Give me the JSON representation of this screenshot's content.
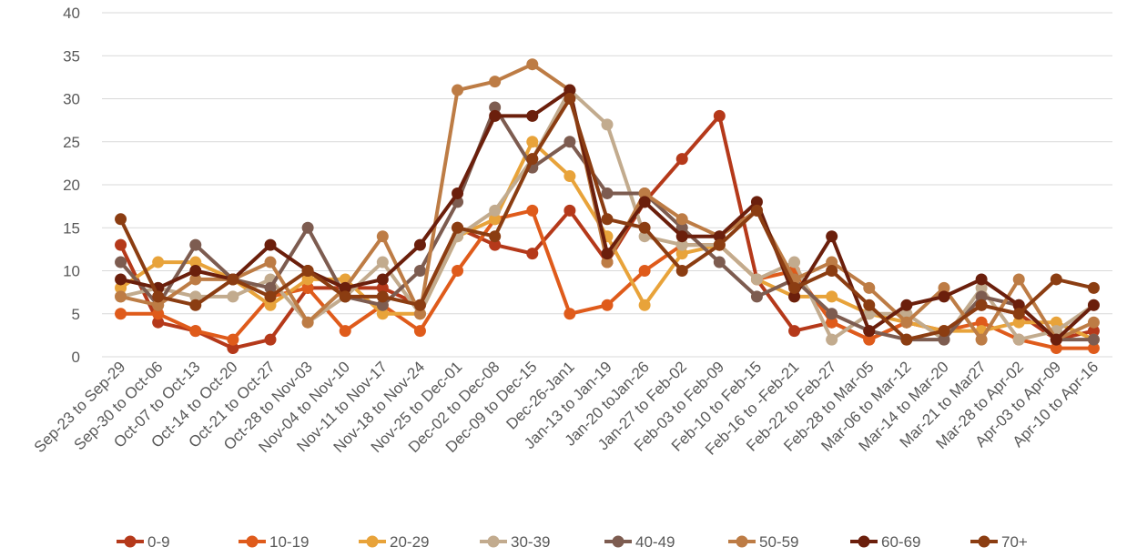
{
  "chart_data": {
    "type": "line",
    "title": "",
    "xlabel": "",
    "ylabel": "",
    "ylim": [
      0,
      40
    ],
    "yticks": [
      0,
      5,
      10,
      15,
      20,
      25,
      30,
      35,
      40
    ],
    "grid": "horizontal",
    "legend_position": "bottom",
    "categories": [
      "Sep-23 to Sep-29",
      "Sep-30 to Oct-06",
      "Oct-07 to Oct-13",
      "Oct-14 to Oct-20",
      "Oct-21 to Oct-27",
      "Oct-28 to Nov-03",
      "Nov-04 to Nov-10",
      "Nov-11 to Nov-17",
      "Nov-18 to Nov-24",
      "Nov-25 to Dec-01",
      "Dec-02 to Dec-08",
      "Dec-09 to Dec-15",
      "Dec-26-Jan1",
      "Jan-13 to Jan-19",
      "Jan-20 toJan-26",
      "Jan-27 to Feb-02",
      "Feb-03 to Feb-09",
      "Feb-10 to Feb-15",
      "Feb-16 to -Feb-21",
      "Feb-22 to Feb-27",
      "Feb-28 to Mar-05",
      "Mar-06 to Mar-12",
      "Mar-14 to Mar-20",
      "Mar-21 to Mar27",
      "Mar-28 to Apr-02",
      "Apr-03 to Apr-09",
      "Apr-10 to Apr-16"
    ],
    "series": [
      {
        "name": "0-9",
        "color": "#b5391a",
        "values": [
          13,
          4,
          3,
          1,
          2,
          8,
          8,
          8,
          6,
          15,
          13,
          12,
          17,
          11,
          18,
          23,
          28,
          9,
          3,
          4,
          2,
          4,
          3,
          6,
          5,
          2,
          3
        ]
      },
      {
        "name": "10-19",
        "color": "#df5b1b",
        "values": [
          5,
          5,
          3,
          2,
          7,
          8,
          3,
          6,
          3,
          10,
          16,
          17,
          5,
          6,
          10,
          13,
          13,
          9,
          10,
          4,
          2,
          4,
          3,
          4,
          2,
          1,
          1
        ]
      },
      {
        "name": "20-29",
        "color": "#e8a33a",
        "values": [
          8,
          11,
          11,
          9,
          6,
          9,
          9,
          5,
          5,
          14,
          16,
          25,
          21,
          14,
          6,
          12,
          13,
          9,
          7,
          7,
          5,
          4,
          3,
          3,
          4,
          4,
          2
        ]
      },
      {
        "name": "30-39",
        "color": "#c2ab8e",
        "values": [
          7,
          8,
          7,
          7,
          9,
          4,
          7,
          11,
          5,
          14,
          17,
          23,
          31,
          27,
          14,
          13,
          13,
          9,
          11,
          2,
          5,
          5,
          2,
          8,
          2,
          3,
          6
        ]
      },
      {
        "name": "40-49",
        "color": "#7d5c50",
        "values": [
          11,
          6,
          13,
          9,
          8,
          15,
          7,
          6,
          10,
          18,
          29,
          22,
          25,
          19,
          19,
          15,
          11,
          7,
          9,
          5,
          3,
          2,
          2,
          7,
          6,
          2,
          2
        ]
      },
      {
        "name": "50-59",
        "color": "#bd7c45",
        "values": [
          7,
          6,
          9,
          9,
          11,
          4,
          8,
          14,
          5,
          31,
          32,
          34,
          31,
          11,
          19,
          16,
          14,
          17,
          9,
          11,
          8,
          4,
          8,
          2,
          9,
          2,
          4
        ]
      },
      {
        "name": "60-69",
        "color": "#6b1f0c",
        "values": [
          9,
          8,
          10,
          9,
          13,
          10,
          8,
          9,
          13,
          19,
          28,
          28,
          31,
          12,
          18,
          14,
          14,
          18,
          7,
          14,
          3,
          6,
          7,
          9,
          6,
          2,
          6
        ]
      },
      {
        "name": "70+",
        "color": "#8b3d12",
        "values": [
          16,
          7,
          6,
          9,
          7,
          10,
          7,
          7,
          6,
          15,
          14,
          23,
          30,
          16,
          15,
          10,
          13,
          17,
          8,
          10,
          6,
          2,
          3,
          6,
          5,
          9,
          8
        ]
      }
    ]
  }
}
